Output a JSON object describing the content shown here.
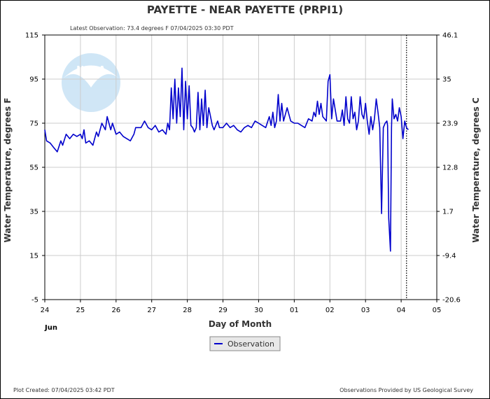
{
  "title": "PAYETTE - NEAR PAYETTE  (PRPI1)",
  "subtitle": "Latest Observation: 73.4 degrees F 07/04/2025 03:30 PDT",
  "footer_left": "Plot Created: 07/04/2025 03:42 PDT",
  "footer_right": "Observations Provided by US Geological Survey",
  "watermark": "NOAA",
  "legend": {
    "label": "Observation"
  },
  "chart_data": {
    "type": "line",
    "title": "PAYETTE - NEAR PAYETTE  (PRPI1)",
    "xlabel": "Day of Month",
    "ylabel": "Water Temperature, degrees F",
    "y2label": "Water Temperature, degrees C",
    "month_label": "Jun",
    "x_ticks": [
      "24",
      "25",
      "26",
      "27",
      "28",
      "29",
      "30",
      "01",
      "02",
      "03",
      "04",
      "05"
    ],
    "xlim": [
      0,
      11
    ],
    "ylim": [
      -5,
      115
    ],
    "y_ticks": [
      115,
      95,
      75,
      55,
      35,
      15,
      -5
    ],
    "y2_ticks": [
      "46.1",
      "35",
      "23.9",
      "12.8",
      "1.7",
      "-9.4",
      "-20.6"
    ],
    "latest_observation_day": 10.15,
    "grid": true,
    "legend_position": "bottom-center",
    "series_color": "#0000cc",
    "series": [
      {
        "name": "Observation",
        "points": [
          [
            0,
            72
          ],
          [
            0.05,
            67
          ],
          [
            0.15,
            66
          ],
          [
            0.25,
            64
          ],
          [
            0.35,
            62
          ],
          [
            0.45,
            67
          ],
          [
            0.5,
            65
          ],
          [
            0.6,
            70
          ],
          [
            0.7,
            68
          ],
          [
            0.8,
            70
          ],
          [
            0.9,
            69
          ],
          [
            1.0,
            70
          ],
          [
            1.05,
            68
          ],
          [
            1.1,
            72
          ],
          [
            1.15,
            66
          ],
          [
            1.25,
            67
          ],
          [
            1.35,
            65
          ],
          [
            1.45,
            71
          ],
          [
            1.5,
            69
          ],
          [
            1.6,
            75
          ],
          [
            1.7,
            72
          ],
          [
            1.75,
            78
          ],
          [
            1.85,
            72
          ],
          [
            1.9,
            75
          ],
          [
            2.0,
            70
          ],
          [
            2.1,
            71
          ],
          [
            2.2,
            69
          ],
          [
            2.3,
            68
          ],
          [
            2.4,
            67
          ],
          [
            2.5,
            70
          ],
          [
            2.55,
            73
          ],
          [
            2.7,
            73
          ],
          [
            2.8,
            76
          ],
          [
            2.9,
            73
          ],
          [
            3.0,
            72
          ],
          [
            3.1,
            74
          ],
          [
            3.2,
            71
          ],
          [
            3.3,
            72
          ],
          [
            3.4,
            70
          ],
          [
            3.45,
            75
          ],
          [
            3.5,
            72
          ],
          [
            3.55,
            91
          ],
          [
            3.6,
            77
          ],
          [
            3.65,
            95
          ],
          [
            3.7,
            75
          ],
          [
            3.75,
            91
          ],
          [
            3.8,
            78
          ],
          [
            3.85,
            100
          ],
          [
            3.9,
            72
          ],
          [
            3.95,
            94
          ],
          [
            4.0,
            77
          ],
          [
            4.05,
            92
          ],
          [
            4.1,
            74
          ],
          [
            4.15,
            73
          ],
          [
            4.2,
            71
          ],
          [
            4.25,
            73
          ],
          [
            4.3,
            89
          ],
          [
            4.35,
            72
          ],
          [
            4.4,
            86
          ],
          [
            4.45,
            74
          ],
          [
            4.5,
            90
          ],
          [
            4.55,
            73
          ],
          [
            4.6,
            82
          ],
          [
            4.7,
            74
          ],
          [
            4.75,
            72
          ],
          [
            4.85,
            76
          ],
          [
            4.9,
            73
          ],
          [
            5.0,
            73
          ],
          [
            5.1,
            75
          ],
          [
            5.2,
            73
          ],
          [
            5.3,
            74
          ],
          [
            5.4,
            72
          ],
          [
            5.5,
            71
          ],
          [
            5.6,
            73
          ],
          [
            5.7,
            74
          ],
          [
            5.8,
            73
          ],
          [
            5.9,
            76
          ],
          [
            6.0,
            75
          ],
          [
            6.1,
            74
          ],
          [
            6.2,
            73
          ],
          [
            6.3,
            78
          ],
          [
            6.35,
            74
          ],
          [
            6.4,
            80
          ],
          [
            6.45,
            73
          ],
          [
            6.5,
            76
          ],
          [
            6.55,
            88
          ],
          [
            6.6,
            76
          ],
          [
            6.65,
            84
          ],
          [
            6.7,
            76
          ],
          [
            6.8,
            82
          ],
          [
            6.9,
            76
          ],
          [
            7.0,
            75
          ],
          [
            7.1,
            75
          ],
          [
            7.2,
            74
          ],
          [
            7.3,
            73
          ],
          [
            7.4,
            77
          ],
          [
            7.5,
            76
          ],
          [
            7.55,
            80
          ],
          [
            7.6,
            78
          ],
          [
            7.65,
            85
          ],
          [
            7.7,
            79
          ],
          [
            7.75,
            84
          ],
          [
            7.8,
            78
          ],
          [
            7.9,
            76
          ],
          [
            7.95,
            94
          ],
          [
            8.0,
            97
          ],
          [
            8.05,
            77
          ],
          [
            8.1,
            86
          ],
          [
            8.2,
            76
          ],
          [
            8.3,
            76
          ],
          [
            8.35,
            81
          ],
          [
            8.4,
            74
          ],
          [
            8.45,
            87
          ],
          [
            8.5,
            77
          ],
          [
            8.55,
            75
          ],
          [
            8.6,
            87
          ],
          [
            8.65,
            77
          ],
          [
            8.7,
            80
          ],
          [
            8.75,
            72
          ],
          [
            8.8,
            76
          ],
          [
            8.85,
            87
          ],
          [
            8.9,
            79
          ],
          [
            8.95,
            77
          ],
          [
            9.0,
            84
          ],
          [
            9.05,
            76
          ],
          [
            9.1,
            70
          ],
          [
            9.15,
            78
          ],
          [
            9.2,
            72
          ],
          [
            9.25,
            77
          ],
          [
            9.3,
            86
          ],
          [
            9.35,
            80
          ],
          [
            9.4,
            73
          ],
          [
            9.45,
            34
          ],
          [
            9.5,
            73
          ],
          [
            9.55,
            75
          ],
          [
            9.6,
            76
          ],
          [
            9.62,
            74
          ],
          [
            9.65,
            32
          ],
          [
            9.7,
            17
          ],
          [
            9.73,
            73
          ],
          [
            9.75,
            86
          ],
          [
            9.8,
            77
          ],
          [
            9.85,
            79
          ],
          [
            9.9,
            76
          ],
          [
            9.95,
            82
          ],
          [
            10.0,
            78
          ],
          [
            10.05,
            68
          ],
          [
            10.1,
            76
          ],
          [
            10.15,
            73
          ],
          [
            10.2,
            72
          ]
        ]
      }
    ]
  }
}
